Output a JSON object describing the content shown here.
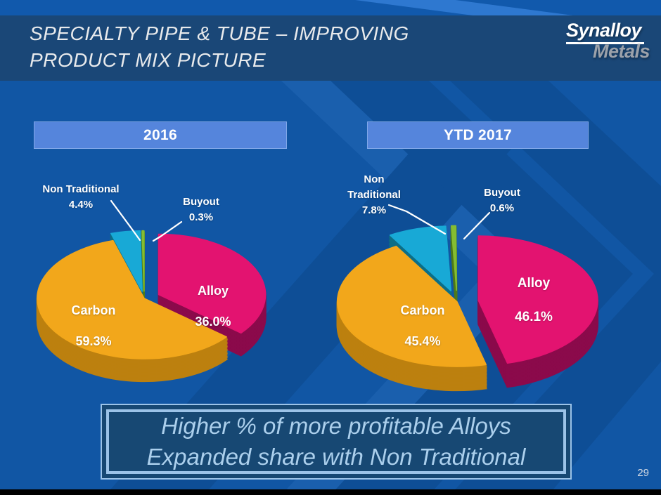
{
  "slide": {
    "title_lines": [
      "SPECIALTY PIPE & TUBE – IMPROVING",
      "PRODUCT MIX PICTURE"
    ],
    "logo": {
      "line1": "Synalloy",
      "line2": "Metals"
    },
    "callout_lines": [
      "Higher % of more profitable Alloys",
      "Expanded share with Non Traditional"
    ],
    "page_number": "29"
  },
  "colors": {
    "slide_background": "#1156A4",
    "header_background": "#1A4777",
    "chevron_dark": "#0E4E96",
    "chevron_light": "#1A5FAD",
    "year_band_fill": "#5585DC",
    "callout_border": "#9CC3E8",
    "callout_fill": "#174873",
    "callout_text": "#ABCFEC",
    "label_text": "#FFFFFF",
    "logo_metals_gray": "#9BA1AA"
  },
  "chart_data": [
    {
      "type": "pie",
      "title": "2016",
      "unit": "percent_of_product_mix",
      "style": "3d-exploded",
      "start_angle": 0,
      "direction": "clockwise",
      "legend": "none",
      "slices": [
        {
          "label": "Alloy",
          "value": 36.0,
          "value_label": "36.0%",
          "color": "#E31370",
          "side_color": "#8B0A4B",
          "explode": 0.15
        },
        {
          "label": "Carbon",
          "value": 59.3,
          "value_label": "59.3%",
          "color": "#F2A71B",
          "side_color": "#BC800F",
          "explode": 0
        },
        {
          "label": "Non Traditional",
          "value": 4.4,
          "value_label": "4.4%",
          "color": "#18A9D6",
          "side_color": "#0C6E86",
          "explode": 0.12,
          "callout_lines": [
            "Non Traditional",
            "4.4%"
          ]
        },
        {
          "label": "Buyout",
          "value": 0.3,
          "value_label": "0.3%",
          "color": "#84BD32",
          "side_color": "#4E7A1A",
          "explode": 0.12,
          "callout_lines": [
            "Buyout",
            "0.3%"
          ]
        }
      ]
    },
    {
      "type": "pie",
      "title": "YTD 2017",
      "unit": "percent_of_product_mix",
      "style": "3d-exploded",
      "start_angle": 0,
      "direction": "clockwise",
      "legend": "none",
      "slices": [
        {
          "label": "Alloy",
          "value": 46.1,
          "value_label": "46.1%",
          "color": "#E31370",
          "side_color": "#8B0A4B",
          "explode": 0.18
        },
        {
          "label": "Carbon",
          "value": 45.4,
          "value_label": "45.4%",
          "color": "#F2A71B",
          "side_color": "#BC800F",
          "explode": 0
        },
        {
          "label": "Non Traditional",
          "value": 7.8,
          "value_label": "7.8%",
          "color": "#18A9D6",
          "side_color": "#0C6E86",
          "explode": 0.18,
          "callout_lines": [
            "Non",
            "Traditional",
            "7.8%"
          ]
        },
        {
          "label": "Buyout",
          "value": 0.6,
          "value_label": "0.6%",
          "color": "#84BD32",
          "side_color": "#4E7A1A",
          "explode": 0.18,
          "callout_lines": [
            "Buyout",
            "0.6%"
          ]
        }
      ]
    }
  ]
}
